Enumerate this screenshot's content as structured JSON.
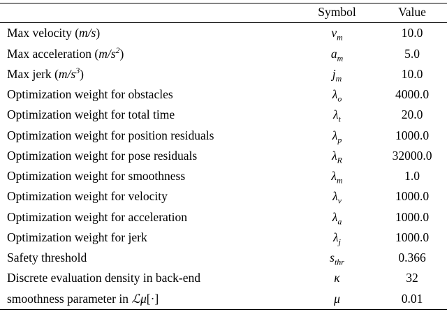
{
  "table": {
    "headers": [
      "",
      "Symbol",
      "Value"
    ],
    "rows": [
      {
        "label": [
          {
            "k": "t",
            "v": "Max velocity ("
          },
          {
            "k": "m",
            "v": "m/s"
          },
          {
            "k": "t",
            "v": ")"
          }
        ],
        "symbol": {
          "base": "v",
          "sub": "m"
        },
        "value": "10.0"
      },
      {
        "label": [
          {
            "k": "t",
            "v": "Max acceleration ("
          },
          {
            "k": "m",
            "v": "m/s"
          },
          {
            "k": "s",
            "v": "2"
          },
          {
            "k": "t",
            "v": ")"
          }
        ],
        "symbol": {
          "base": "a",
          "sub": "m"
        },
        "value": "5.0"
      },
      {
        "label": [
          {
            "k": "t",
            "v": "Max jerk ("
          },
          {
            "k": "m",
            "v": "m/s"
          },
          {
            "k": "s",
            "v": "3"
          },
          {
            "k": "t",
            "v": ")"
          }
        ],
        "symbol": {
          "base": "j",
          "sub": "m"
        },
        "value": "10.0"
      },
      {
        "label": [
          {
            "k": "t",
            "v": "Optimization weight for obstacles"
          }
        ],
        "symbol": {
          "base": "λ",
          "sub": "o"
        },
        "value": "4000.0"
      },
      {
        "label": [
          {
            "k": "t",
            "v": "Optimization weight for total time"
          }
        ],
        "symbol": {
          "base": "λ",
          "sub": "t"
        },
        "value": "20.0"
      },
      {
        "label": [
          {
            "k": "t",
            "v": "Optimization weight for position residuals"
          }
        ],
        "symbol": {
          "base": "λ",
          "sub": "p"
        },
        "value": "1000.0"
      },
      {
        "label": [
          {
            "k": "t",
            "v": "Optimization weight for pose residuals"
          }
        ],
        "symbol": {
          "base": "λ",
          "sub": "R"
        },
        "value": "32000.0"
      },
      {
        "label": [
          {
            "k": "t",
            "v": "Optimization weight for smoothness"
          }
        ],
        "symbol": {
          "base": "λ",
          "sub": "m"
        },
        "value": "1.0"
      },
      {
        "label": [
          {
            "k": "t",
            "v": "Optimization weight for velocity"
          }
        ],
        "symbol": {
          "base": "λ",
          "sub": "v"
        },
        "value": "1000.0"
      },
      {
        "label": [
          {
            "k": "t",
            "v": "Optimization weight for acceleration"
          }
        ],
        "symbol": {
          "base": "λ",
          "sub": "a"
        },
        "value": "1000.0"
      },
      {
        "label": [
          {
            "k": "t",
            "v": "Optimization weight for jerk"
          }
        ],
        "symbol": {
          "base": "λ",
          "sub": "j"
        },
        "value": "1000.0"
      },
      {
        "label": [
          {
            "k": "t",
            "v": "Safety threshold"
          }
        ],
        "symbol": {
          "base": "s",
          "sub": "thr"
        },
        "value": "0.366"
      },
      {
        "label": [
          {
            "k": "t",
            "v": "Discrete evaluation density in back-end"
          }
        ],
        "symbol": {
          "base": "κ",
          "sub": ""
        },
        "value": "32"
      },
      {
        "label": [
          {
            "k": "t",
            "v": "smoothness parameter in "
          },
          {
            "k": "m",
            "v": "ℒμ"
          },
          {
            "k": "t",
            "v": "[·]"
          }
        ],
        "symbol": {
          "base": "μ",
          "sub": ""
        },
        "value": "0.01"
      }
    ]
  }
}
